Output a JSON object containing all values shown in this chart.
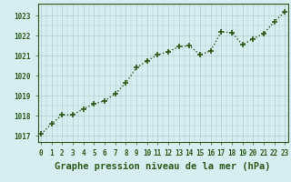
{
  "x": [
    0,
    1,
    2,
    3,
    4,
    5,
    6,
    7,
    8,
    9,
    10,
    11,
    12,
    13,
    14,
    15,
    16,
    17,
    18,
    19,
    20,
    21,
    22,
    23
  ],
  "y": [
    1017.1,
    1017.6,
    1018.05,
    1018.05,
    1018.35,
    1018.6,
    1018.75,
    1019.1,
    1019.65,
    1020.4,
    1020.75,
    1021.05,
    1021.2,
    1021.45,
    1021.5,
    1021.05,
    1021.25,
    1022.2,
    1022.15,
    1021.55,
    1021.85,
    1022.1,
    1022.7,
    1023.2
  ],
  "line_color": "#2d5a1b",
  "marker": "+",
  "marker_size": 5,
  "linewidth": 1.0,
  "background_color": "#d6eef0",
  "grid_color": "#b0cccc",
  "xlabel": "Graphe pression niveau de la mer (hPa)",
  "xlabel_fontsize": 7.5,
  "xlabel_color": "#2d5a1b",
  "ytick_labels": [
    1017,
    1018,
    1019,
    1020,
    1021,
    1022,
    1023
  ],
  "xtick_labels": [
    "0",
    "1",
    "2",
    "3",
    "4",
    "5",
    "6",
    "7",
    "8",
    "9",
    "10",
    "11",
    "12",
    "13",
    "14",
    "15",
    "16",
    "17",
    "18",
    "19",
    "20",
    "21",
    "22",
    "23"
  ],
  "ylim": [
    1016.7,
    1023.6
  ],
  "xlim": [
    -0.3,
    23.3
  ],
  "tick_fontsize": 5.5,
  "tick_color": "#2d5a1b",
  "spine_color": "#2d5a1b"
}
